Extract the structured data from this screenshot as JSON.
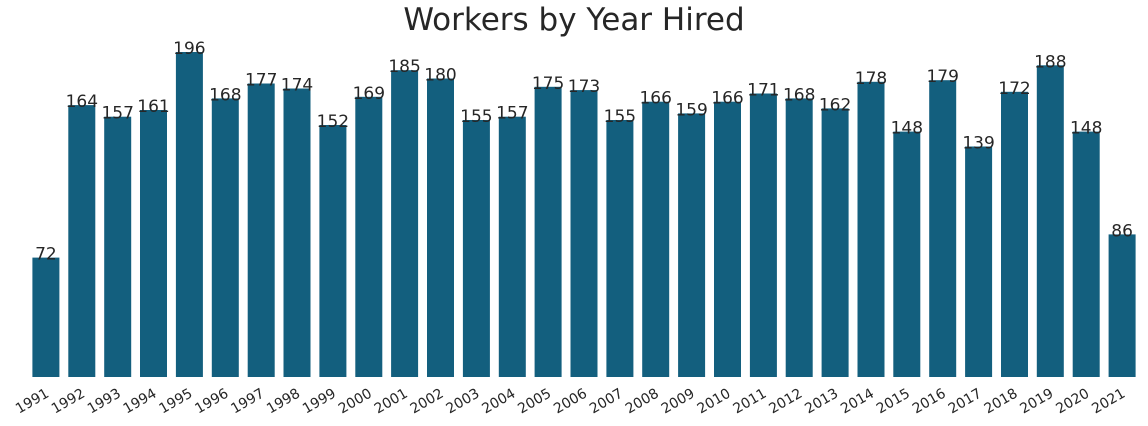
{
  "chart_data": {
    "type": "bar",
    "title": "Workers by Year Hired",
    "xlabel": "",
    "ylabel": "",
    "categories": [
      "1991",
      "1992",
      "1993",
      "1994",
      "1995",
      "1996",
      "1997",
      "1998",
      "1999",
      "2000",
      "2001",
      "2002",
      "2003",
      "2004",
      "2005",
      "2006",
      "2007",
      "2008",
      "2009",
      "2010",
      "2011",
      "2012",
      "2013",
      "2014",
      "2015",
      "2016",
      "2017",
      "2018",
      "2019",
      "2020",
      "2021"
    ],
    "values": [
      72,
      164,
      157,
      161,
      196,
      168,
      177,
      174,
      152,
      169,
      185,
      180,
      155,
      157,
      175,
      173,
      155,
      166,
      159,
      166,
      171,
      168,
      162,
      178,
      148,
      179,
      139,
      172,
      188,
      148,
      86
    ],
    "ylim": [
      0,
      196
    ],
    "grid": false,
    "bar_color": "#135f7e",
    "data_labels": true
  }
}
